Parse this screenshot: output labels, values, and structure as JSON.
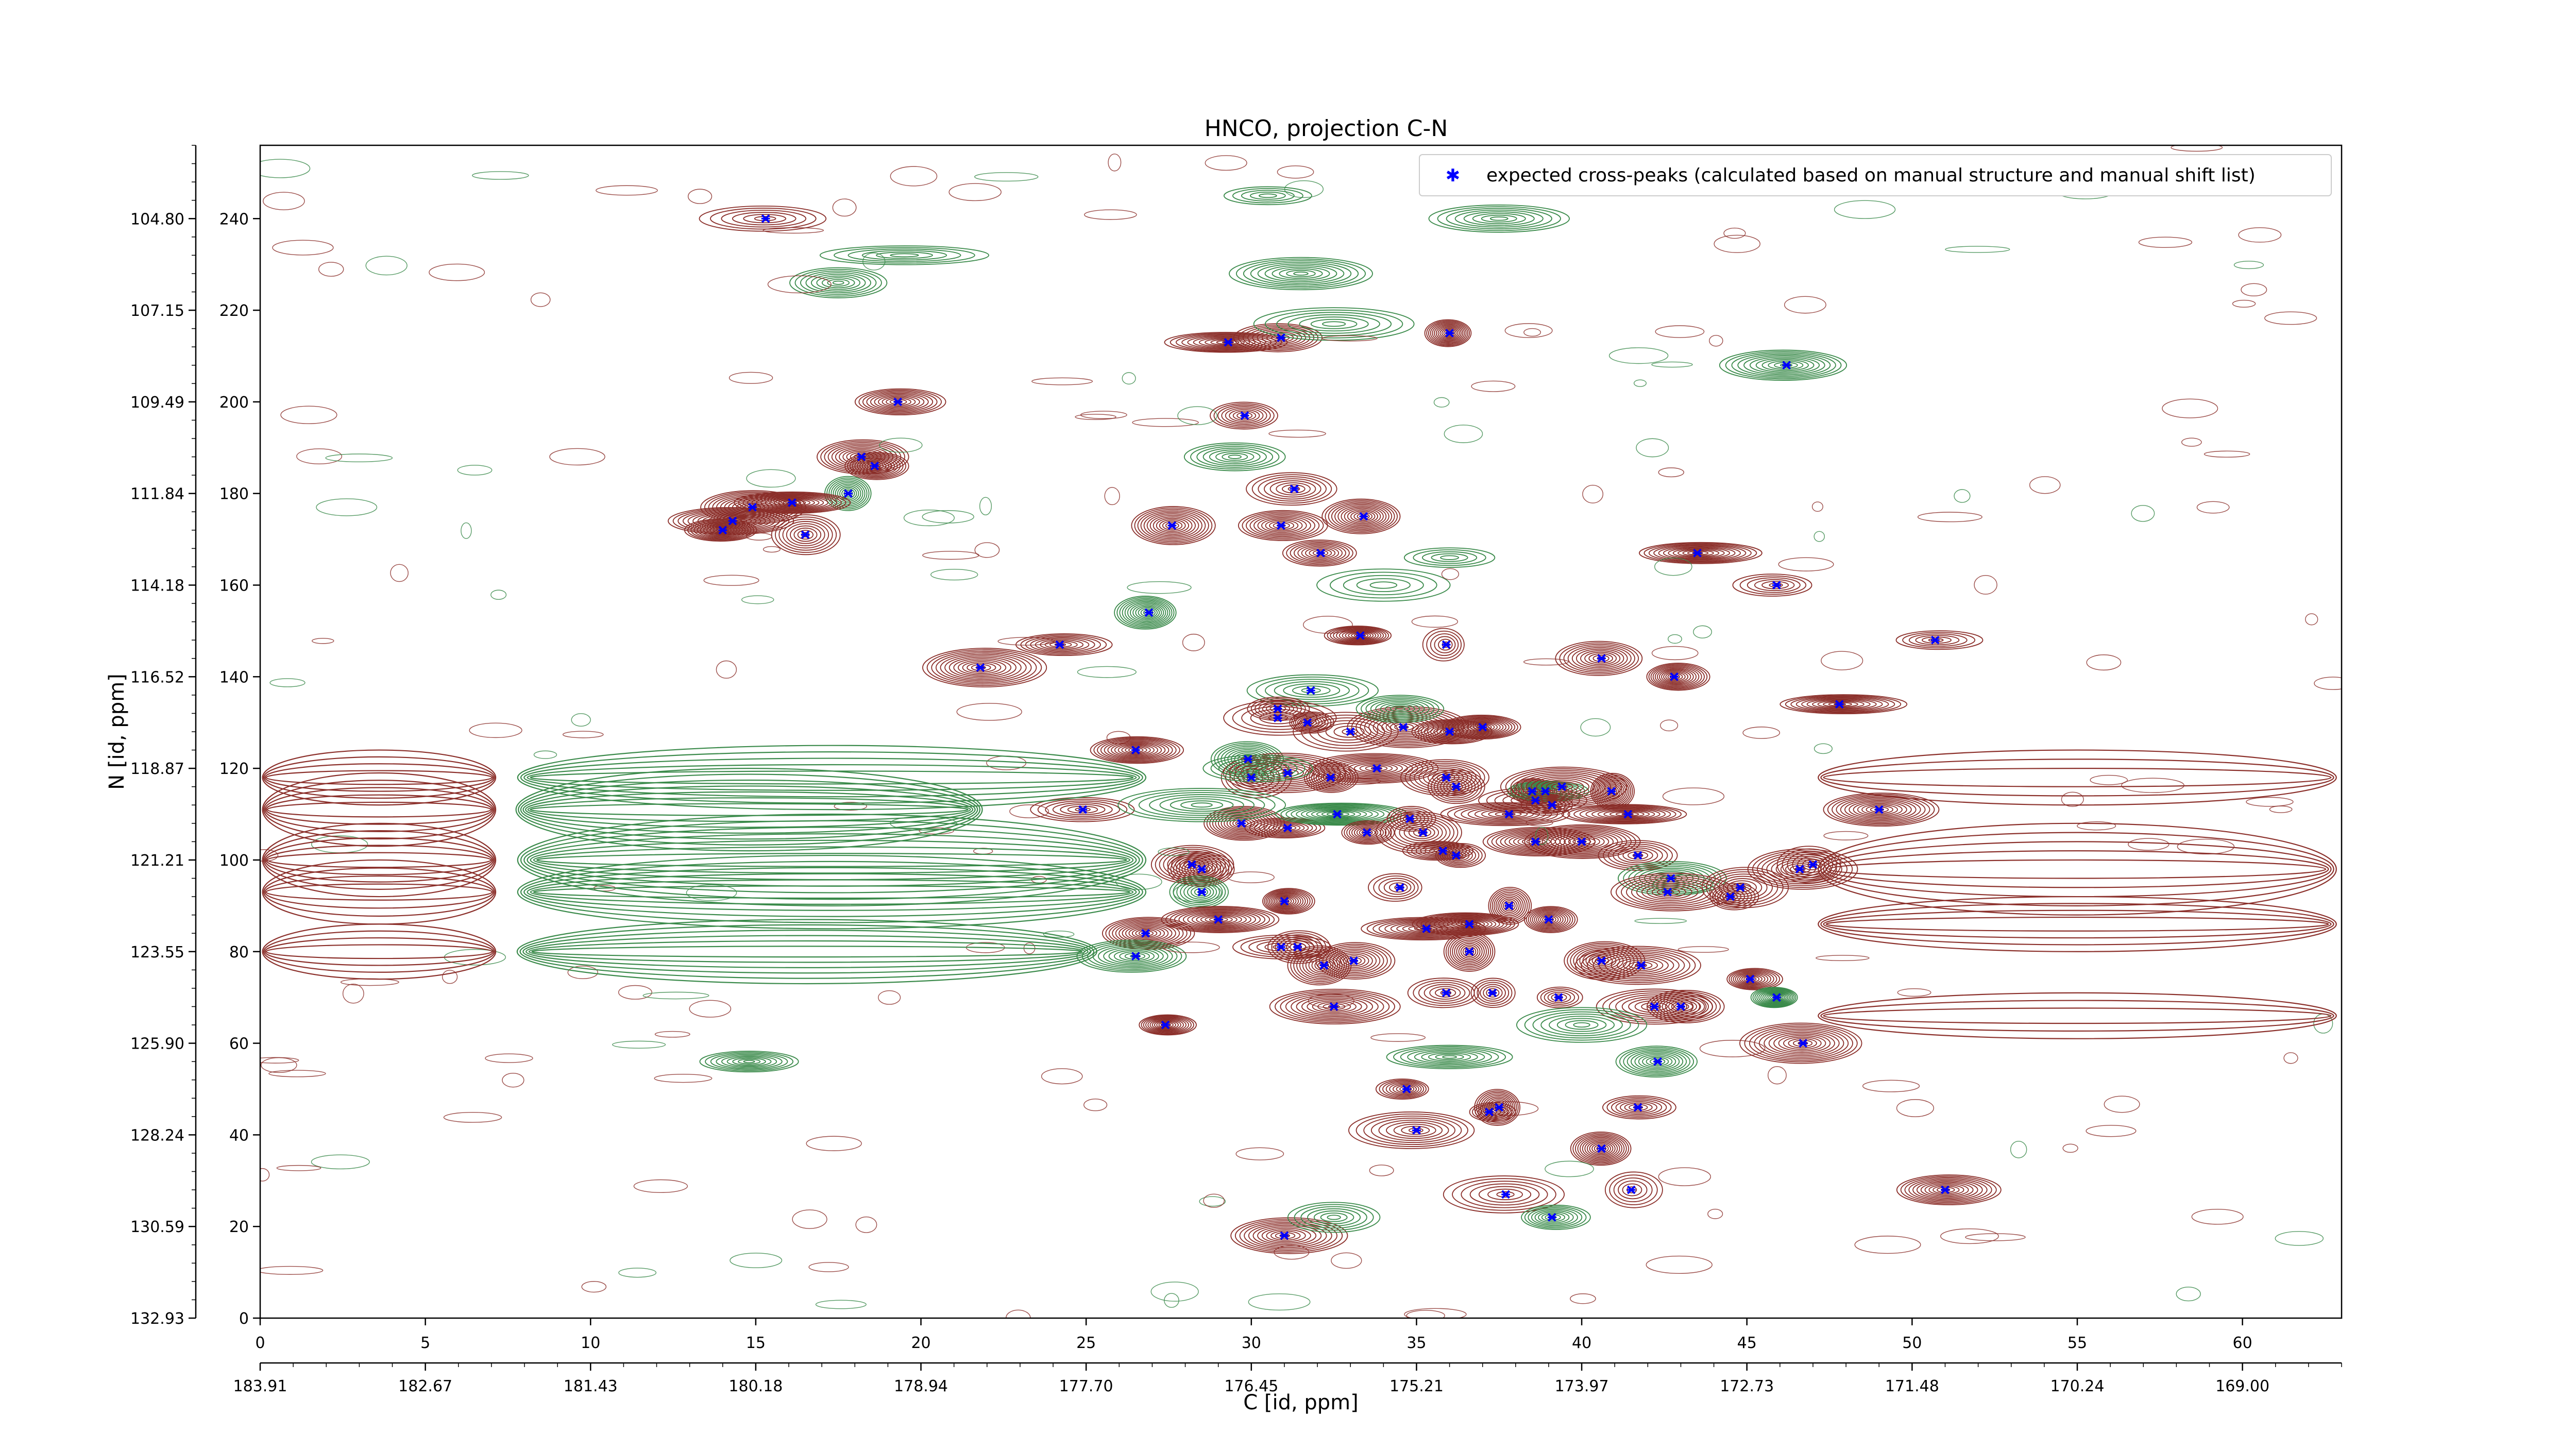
{
  "chart_data": {
    "type": "scatter",
    "title": "HNCO, projection C-N",
    "xlabel": "C [id, ppm]",
    "ylabel": "N [id, ppm]",
    "xlim": [
      0,
      63
    ],
    "ylim": [
      0,
      256
    ],
    "x_index_ticks": [
      "0",
      "5",
      "10",
      "15",
      "20",
      "25",
      "30",
      "35",
      "40",
      "45",
      "50",
      "55",
      "60"
    ],
    "x_ppm_ticks": [
      "183.91",
      "182.67",
      "181.43",
      "180.18",
      "178.94",
      "177.70",
      "176.45",
      "175.21",
      "173.97",
      "172.73",
      "171.48",
      "170.24",
      "169.00"
    ],
    "y_index_ticks": [
      "0",
      "20",
      "40",
      "60",
      "80",
      "100",
      "120",
      "140",
      "160",
      "180",
      "200",
      "220",
      "240"
    ],
    "y_ppm_ticks": [
      "132.93",
      "130.59",
      "128.24",
      "125.90",
      "123.55",
      "121.21",
      "118.87",
      "116.52",
      "114.18",
      "111.84",
      "109.49",
      "107.15",
      "104.80"
    ],
    "legend": {
      "label": "expected cross-peaks (calculated based on manual structure and manual shift list)",
      "placement": "top-right"
    },
    "series": [
      {
        "name": "expected cross-peaks (calculated based on manual structure and manual shift list)",
        "color": "#0000ff",
        "marker": "x",
        "points": [
          [
            15.3,
            240
          ],
          [
            19.3,
            200
          ],
          [
            18.2,
            188
          ],
          [
            18.6,
            186
          ],
          [
            17.8,
            180
          ],
          [
            16.1,
            178
          ],
          [
            14.9,
            177
          ],
          [
            14.3,
            174
          ],
          [
            14.0,
            172
          ],
          [
            16.5,
            171
          ],
          [
            29.3,
            213
          ],
          [
            30.9,
            214
          ],
          [
            36.0,
            215
          ],
          [
            46.2,
            208
          ],
          [
            29.8,
            197
          ],
          [
            31.3,
            181
          ],
          [
            27.6,
            173
          ],
          [
            30.9,
            173
          ],
          [
            33.4,
            175
          ],
          [
            32.1,
            167
          ],
          [
            43.5,
            167
          ],
          [
            45.9,
            160
          ],
          [
            26.9,
            154
          ],
          [
            24.2,
            147
          ],
          [
            21.8,
            142
          ],
          [
            33.3,
            149
          ],
          [
            35.9,
            147
          ],
          [
            40.6,
            144
          ],
          [
            42.8,
            140
          ],
          [
            50.7,
            148
          ],
          [
            47.8,
            134
          ],
          [
            31.8,
            137
          ],
          [
            30.8,
            133
          ],
          [
            30.8,
            131
          ],
          [
            31.7,
            130
          ],
          [
            33.0,
            128
          ],
          [
            34.6,
            129
          ],
          [
            36.0,
            128
          ],
          [
            37.0,
            129
          ],
          [
            26.5,
            124
          ],
          [
            29.9,
            122
          ],
          [
            30.0,
            118
          ],
          [
            31.1,
            119
          ],
          [
            32.4,
            118
          ],
          [
            33.8,
            120
          ],
          [
            36.2,
            116
          ],
          [
            35.9,
            118
          ],
          [
            38.5,
            115
          ],
          [
            38.6,
            113
          ],
          [
            38.9,
            115
          ],
          [
            39.4,
            116
          ],
          [
            40.9,
            115
          ],
          [
            41.4,
            110
          ],
          [
            39.1,
            112
          ],
          [
            37.8,
            110
          ],
          [
            24.9,
            111
          ],
          [
            29.7,
            108
          ],
          [
            31.1,
            107
          ],
          [
            32.6,
            110
          ],
          [
            33.5,
            106
          ],
          [
            34.8,
            109
          ],
          [
            35.2,
            106
          ],
          [
            35.8,
            102
          ],
          [
            36.2,
            101
          ],
          [
            38.6,
            104
          ],
          [
            40.0,
            104
          ],
          [
            41.7,
            101
          ],
          [
            42.7,
            96
          ],
          [
            42.6,
            93
          ],
          [
            44.8,
            94
          ],
          [
            44.5,
            92
          ],
          [
            46.6,
            98
          ],
          [
            47.0,
            99
          ],
          [
            49.0,
            111
          ],
          [
            28.2,
            99
          ],
          [
            28.5,
            98
          ],
          [
            28.5,
            93
          ],
          [
            29.0,
            87
          ],
          [
            31.0,
            91
          ],
          [
            34.5,
            94
          ],
          [
            35.3,
            85
          ],
          [
            36.6,
            86
          ],
          [
            37.8,
            90
          ],
          [
            39.0,
            87
          ],
          [
            26.8,
            84
          ],
          [
            26.5,
            79
          ],
          [
            30.9,
            81
          ],
          [
            31.4,
            81
          ],
          [
            32.2,
            77
          ],
          [
            33.1,
            78
          ],
          [
            36.6,
            80
          ],
          [
            40.6,
            78
          ],
          [
            41.8,
            77
          ],
          [
            45.1,
            74
          ],
          [
            45.9,
            70
          ],
          [
            46.7,
            60
          ],
          [
            37.3,
            71
          ],
          [
            35.9,
            71
          ],
          [
            39.3,
            70
          ],
          [
            42.2,
            68
          ],
          [
            43.0,
            68
          ],
          [
            32.5,
            68
          ],
          [
            27.4,
            64
          ],
          [
            42.3,
            56
          ],
          [
            34.7,
            50
          ],
          [
            41.7,
            46
          ],
          [
            37.2,
            45
          ],
          [
            37.5,
            46
          ],
          [
            35.0,
            41
          ],
          [
            40.6,
            37
          ],
          [
            41.5,
            28
          ],
          [
            37.7,
            27
          ],
          [
            39.1,
            22
          ],
          [
            51.0,
            28
          ],
          [
            31.0,
            18
          ]
        ]
      }
    ],
    "contour_colors": {
      "positive": "#8b2f2a",
      "negative": "#3a8a4a"
    }
  }
}
